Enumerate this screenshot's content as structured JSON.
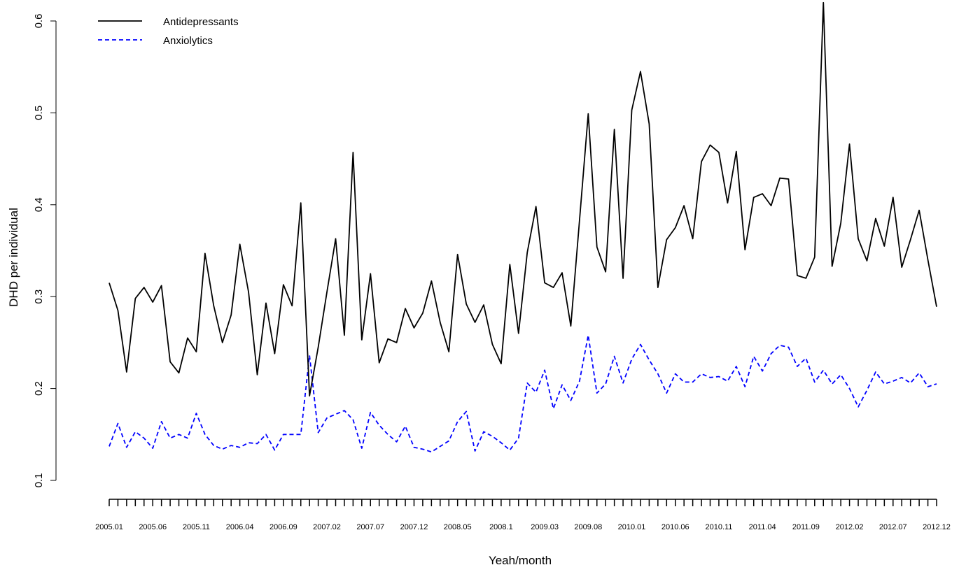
{
  "chart_data": {
    "type": "line",
    "title": "",
    "xlabel": "Yeah/month",
    "ylabel": "DHD per individual",
    "ylim": [
      0.1,
      0.62
    ],
    "y_ticks": [
      "0.1",
      "0.2",
      "0.3",
      "0.4",
      "0.5",
      "0.6"
    ],
    "x_tick_count": 96,
    "x_labels": [
      {
        "index": 0,
        "text": "2005.01"
      },
      {
        "index": 5,
        "text": "2005.06"
      },
      {
        "index": 10,
        "text": "2005.11"
      },
      {
        "index": 15,
        "text": "2006.04"
      },
      {
        "index": 20,
        "text": "2006.09"
      },
      {
        "index": 25,
        "text": "2007.02"
      },
      {
        "index": 30,
        "text": "2007.07"
      },
      {
        "index": 35,
        "text": "2007.12"
      },
      {
        "index": 40,
        "text": "2008.05"
      },
      {
        "index": 45,
        "text": "2008.1"
      },
      {
        "index": 50,
        "text": "2009.03"
      },
      {
        "index": 55,
        "text": "2009.08"
      },
      {
        "index": 60,
        "text": "2010.01"
      },
      {
        "index": 65,
        "text": "2010.06"
      },
      {
        "index": 70,
        "text": "2010.11"
      },
      {
        "index": 75,
        "text": "2011.04"
      },
      {
        "index": 80,
        "text": "2011.09"
      },
      {
        "index": 85,
        "text": "2012.02"
      },
      {
        "index": 90,
        "text": "2012.07"
      },
      {
        "index": 95,
        "text": "2012.12"
      }
    ],
    "grid": false,
    "legend_position": "top-left",
    "series": [
      {
        "name": "Antidepressants",
        "color": "#000000",
        "dash": "solid",
        "values": [
          0.315,
          0.285,
          0.218,
          0.298,
          0.31,
          0.294,
          0.312,
          0.229,
          0.217,
          0.255,
          0.24,
          0.347,
          0.29,
          0.25,
          0.28,
          0.357,
          0.305,
          0.215,
          0.293,
          0.238,
          0.313,
          0.29,
          0.402,
          0.192,
          0.245,
          0.305,
          0.363,
          0.258,
          0.457,
          0.253,
          0.325,
          0.228,
          0.254,
          0.25,
          0.287,
          0.266,
          0.282,
          0.317,
          0.272,
          0.24,
          0.346,
          0.292,
          0.272,
          0.291,
          0.248,
          0.227,
          0.335,
          0.26,
          0.348,
          0.398,
          0.315,
          0.31,
          0.326,
          0.268,
          0.383,
          0.499,
          0.354,
          0.327,
          0.482,
          0.32,
          0.503,
          0.545,
          0.488,
          0.31,
          0.362,
          0.375,
          0.399,
          0.363,
          0.447,
          0.465,
          0.457,
          0.402,
          0.458,
          0.351,
          0.408,
          0.412,
          0.399,
          0.429,
          0.428,
          0.323,
          0.32,
          0.343,
          0.62,
          0.333,
          0.38,
          0.466,
          0.363,
          0.339,
          0.385,
          0.355,
          0.408,
          0.332,
          0.362,
          0.394,
          0.34,
          0.289
        ]
      },
      {
        "name": "Anxiolytics",
        "color": "#0000ff",
        "dash": "dashed",
        "values": [
          0.137,
          0.162,
          0.136,
          0.153,
          0.146,
          0.135,
          0.164,
          0.146,
          0.15,
          0.146,
          0.173,
          0.15,
          0.138,
          0.134,
          0.138,
          0.136,
          0.141,
          0.14,
          0.15,
          0.133,
          0.15,
          0.15,
          0.15,
          0.236,
          0.152,
          0.168,
          0.172,
          0.176,
          0.166,
          0.135,
          0.174,
          0.16,
          0.15,
          0.142,
          0.159,
          0.136,
          0.134,
          0.131,
          0.137,
          0.143,
          0.164,
          0.175,
          0.132,
          0.153,
          0.148,
          0.141,
          0.133,
          0.146,
          0.206,
          0.196,
          0.22,
          0.178,
          0.204,
          0.187,
          0.208,
          0.258,
          0.195,
          0.205,
          0.235,
          0.206,
          0.232,
          0.248,
          0.231,
          0.216,
          0.195,
          0.216,
          0.207,
          0.207,
          0.216,
          0.212,
          0.213,
          0.208,
          0.224,
          0.202,
          0.235,
          0.219,
          0.238,
          0.247,
          0.245,
          0.224,
          0.233,
          0.207,
          0.22,
          0.205,
          0.215,
          0.2,
          0.18,
          0.198,
          0.218,
          0.205,
          0.208,
          0.212,
          0.206,
          0.217,
          0.202,
          0.205
        ]
      }
    ]
  }
}
